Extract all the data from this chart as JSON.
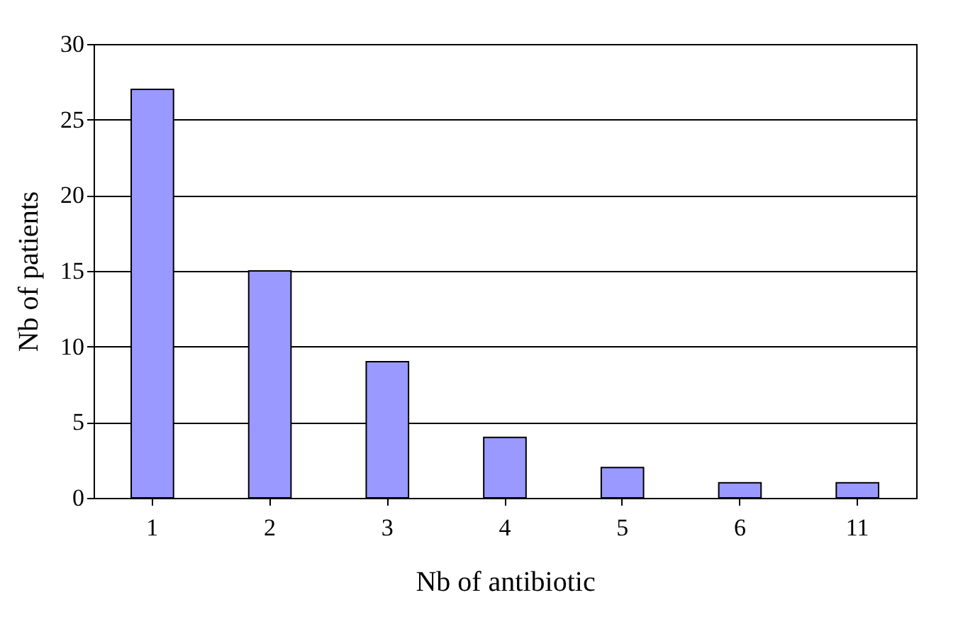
{
  "chart_data": {
    "type": "bar",
    "xlabel": "Nb of antibiotic",
    "ylabel": "Nb of patients",
    "categories": [
      "1",
      "2",
      "3",
      "4",
      "5",
      "6",
      "11"
    ],
    "values": [
      27,
      15,
      9,
      4,
      2,
      1,
      1
    ],
    "color": "#9999ff",
    "ylim": [
      0,
      30
    ],
    "yticks": [
      0,
      5,
      10,
      15,
      20,
      25,
      30
    ],
    "grid": "y"
  }
}
